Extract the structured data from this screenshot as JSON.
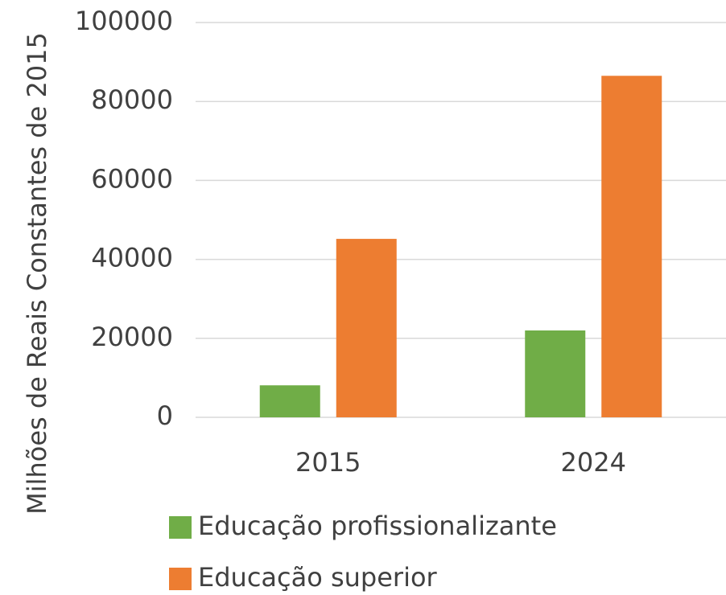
{
  "chart_data": {
    "type": "bar",
    "y_axis_label": "Milhões de Reais Constantes de 2015",
    "categories": [
      "2015",
      "2024"
    ],
    "series": [
      {
        "name": "Educação profissionalizante",
        "color": "#70ad47",
        "values": [
          8100,
          22000
        ]
      },
      {
        "name": "Educação superior",
        "color": "#ed7d31",
        "values": [
          45200,
          86500
        ]
      }
    ],
    "ylim": [
      0,
      100000
    ],
    "yticks": [
      0,
      20000,
      40000,
      60000,
      80000,
      100000
    ],
    "grid": true,
    "legend": "bottom"
  }
}
